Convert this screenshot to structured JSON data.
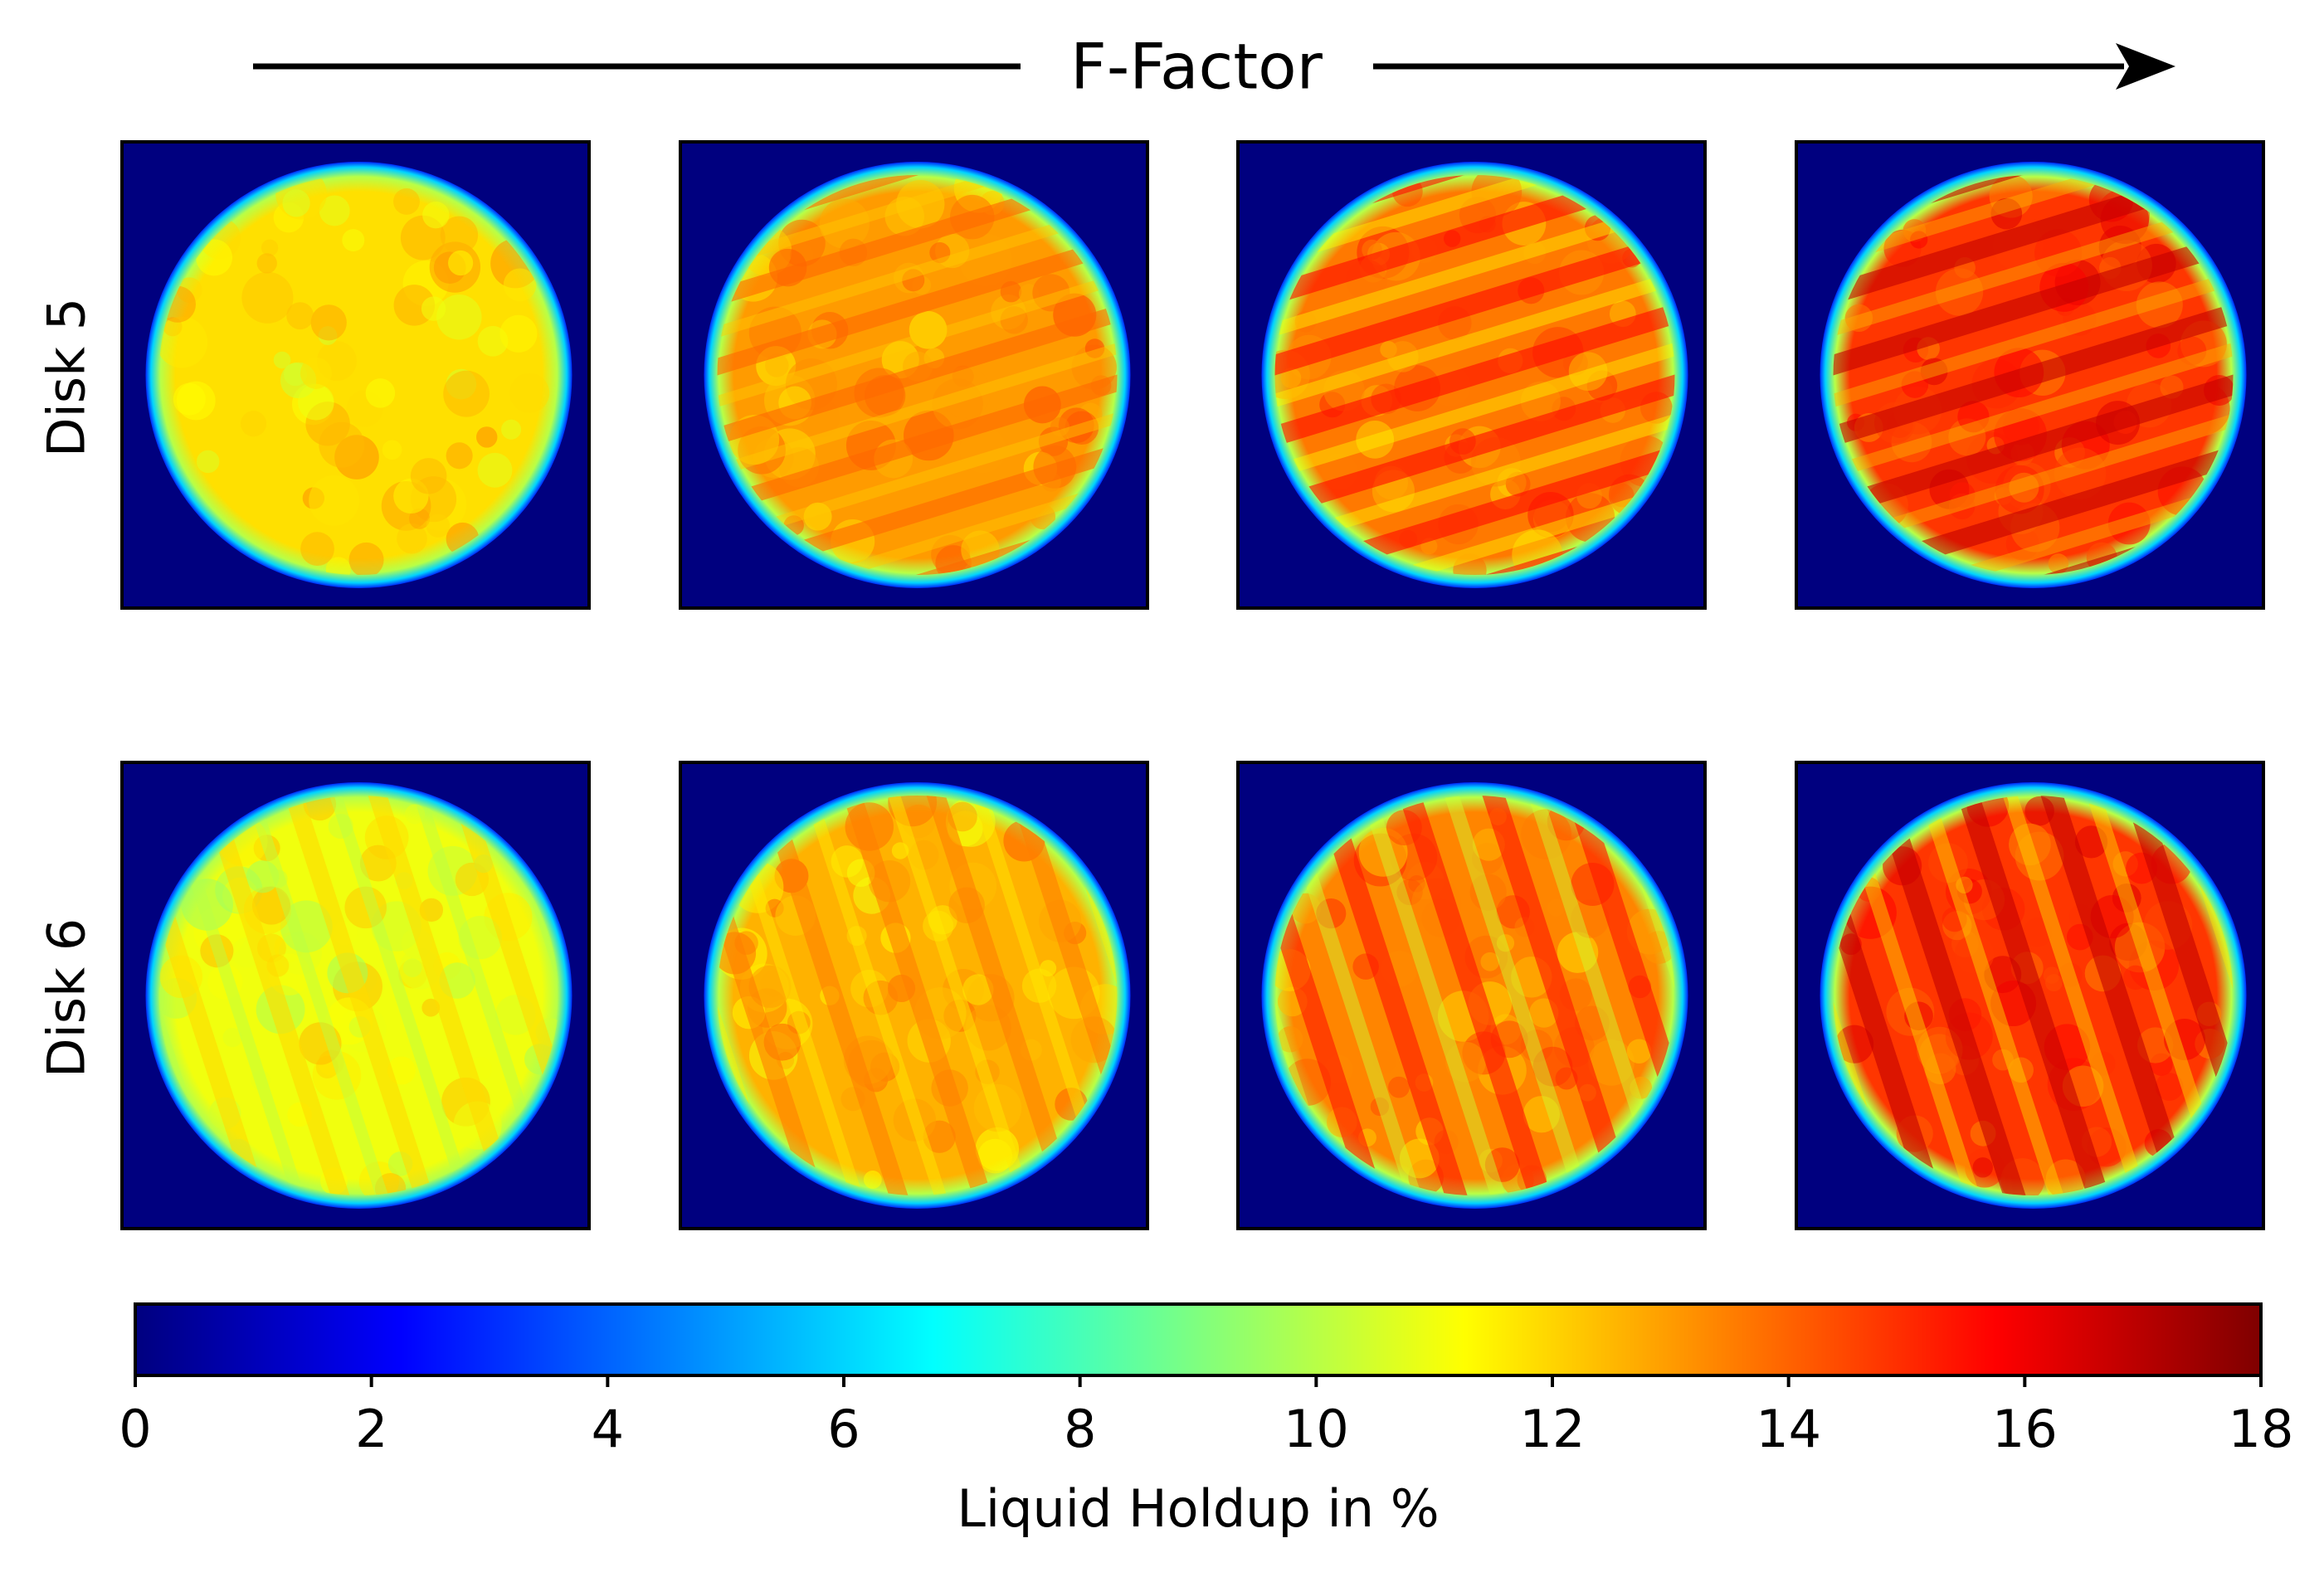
{
  "chart_data": {
    "type": "heatmap",
    "title": "F-Factor",
    "direction_arrow": "left-to-right",
    "rows": [
      {
        "label": "Disk 5",
        "panels": [
          {
            "step": 1,
            "mean_holdup": 11.8,
            "stripes": "none"
          },
          {
            "step": 2,
            "mean_holdup": 13.0,
            "stripes": "faint"
          },
          {
            "step": 3,
            "mean_holdup": 13.6,
            "stripes": "diagonal-upward"
          },
          {
            "step": 4,
            "mean_holdup": 14.8,
            "stripes": "diagonal-upward"
          }
        ]
      },
      {
        "label": "Disk 6",
        "panels": [
          {
            "step": 1,
            "mean_holdup": 11.0,
            "stripes": "faint-steep"
          },
          {
            "step": 2,
            "mean_holdup": 12.6,
            "stripes": "faint-steep"
          },
          {
            "step": 3,
            "mean_holdup": 13.4,
            "stripes": "steep"
          },
          {
            "step": 4,
            "mean_holdup": 14.8,
            "stripes": "steep"
          }
        ]
      }
    ],
    "colorbar": {
      "colormap": "jet",
      "label": "Liquid Holdup in %",
      "range": [
        0,
        18
      ],
      "ticks": [
        0,
        2,
        4,
        6,
        8,
        10,
        12,
        14,
        16,
        18
      ],
      "orientation": "horizontal"
    },
    "background_value": 0,
    "rim_value": 6
  },
  "colors": {
    "jet_stops": [
      "#00007f",
      "#0000ff",
      "#007fff",
      "#00ffff",
      "#7fff7f",
      "#ffff00",
      "#ff7f00",
      "#ff0000",
      "#7f0000"
    ],
    "frame": "#000000"
  }
}
